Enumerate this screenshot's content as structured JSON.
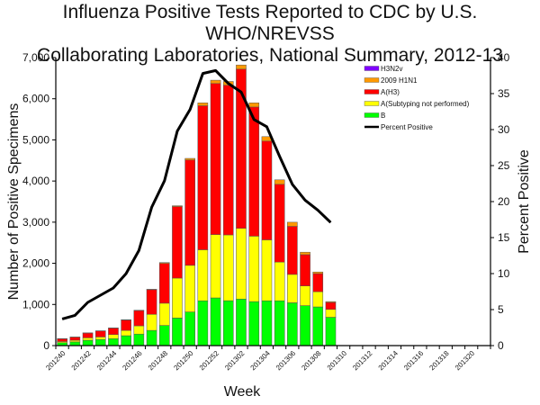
{
  "title_line1": "Influenza Positive Tests Reported to CDC by U.S. WHO/NREVSS",
  "title_line2": "Collaborating Laboratories, National Summary, 2012-13",
  "chart_data": {
    "type": "bar",
    "stacked": true,
    "title": "Influenza Positive Tests Reported to CDC by U.S. WHO/NREVSS Collaborating Laboratories, National Summary, 2012-13",
    "xlabel": "Week",
    "ylabel": "Number of Positive Specimens",
    "y2label": "Percent Positive",
    "ylim": [
      0,
      7000
    ],
    "y2lim": [
      0,
      40
    ],
    "yticks": [
      "0",
      "1,000",
      "2,000",
      "3,000",
      "4,000",
      "5,000",
      "6,000",
      "7,000"
    ],
    "y2ticks": [
      "0",
      "5",
      "10",
      "15",
      "20",
      "25",
      "30",
      "35",
      "40"
    ],
    "xtick_labels": [
      "201240",
      "201242",
      "201244",
      "201246",
      "201248",
      "201250",
      "201252",
      "201302",
      "201304",
      "201306",
      "201308",
      "201310",
      "201312",
      "201314",
      "201316",
      "201318",
      "201320"
    ],
    "categories": [
      "201240",
      "201241",
      "201242",
      "201243",
      "201244",
      "201245",
      "201246",
      "201247",
      "201248",
      "201249",
      "201250",
      "201251",
      "201252",
      "201301",
      "201302",
      "201303",
      "201304",
      "201305",
      "201306",
      "201307",
      "201308",
      "201309"
    ],
    "series": [
      {
        "name": "B",
        "color": "#00ff00",
        "values": [
          70,
          90,
          130,
          150,
          170,
          240,
          280,
          370,
          490,
          670,
          820,
          1090,
          1160,
          1090,
          1130,
          1070,
          1090,
          1090,
          1040,
          970,
          940,
          690
        ]
      },
      {
        "name": "A(Subtyping not performed)",
        "color": "#ffff00",
        "values": [
          30,
          40,
          60,
          60,
          100,
          130,
          200,
          390,
          540,
          970,
          1130,
          1240,
          1540,
          1600,
          1720,
          1590,
          1480,
          940,
          690,
          480,
          370,
          190
        ]
      },
      {
        "name": "A(H3)",
        "color": "#ff0000",
        "values": [
          65,
          75,
          115,
          145,
          155,
          250,
          370,
          600,
          970,
          1740,
          2560,
          3500,
          3670,
          3640,
          3870,
          3140,
          2400,
          1890,
          1170,
          760,
          440,
          170
        ]
      },
      {
        "name": "2009 H1N1",
        "color": "#ff9900",
        "values": [
          5,
          5,
          5,
          5,
          5,
          10,
          10,
          10,
          20,
          20,
          40,
          70,
          80,
          90,
          100,
          100,
          110,
          110,
          100,
          60,
          40,
          20
        ]
      },
      {
        "name": "H3N2v",
        "color": "#7f00ff",
        "values": [
          0,
          0,
          0,
          0,
          0,
          0,
          0,
          0,
          0,
          0,
          0,
          0,
          0,
          0,
          0,
          0,
          0,
          0,
          0,
          0,
          0,
          0
        ]
      }
    ],
    "line": {
      "name": "Percent Positive",
      "color": "#000000",
      "axis": "right",
      "values": [
        3.7,
        4.2,
        6.0,
        7.0,
        8.0,
        10.0,
        13.2,
        19.2,
        22.9,
        29.8,
        32.8,
        37.8,
        38.2,
        36.4,
        35.2,
        31.4,
        30.4,
        26.3,
        22.4,
        20.2,
        18.8,
        17.1
      ]
    },
    "legend": {
      "placement": "top-right",
      "entries": [
        {
          "label": "H3N2v",
          "color": "#7f00ff",
          "kind": "bar"
        },
        {
          "label": "2009 H1N1",
          "color": "#ff9900",
          "kind": "bar"
        },
        {
          "label": "A(H3)",
          "color": "#ff0000",
          "kind": "bar"
        },
        {
          "label": "A(Subtyping not performed)",
          "color": "#ffff00",
          "kind": "bar"
        },
        {
          "label": "B",
          "color": "#00ff00",
          "kind": "bar"
        },
        {
          "label": "Percent Positive",
          "color": "#000000",
          "kind": "line"
        }
      ]
    },
    "grid": false
  }
}
